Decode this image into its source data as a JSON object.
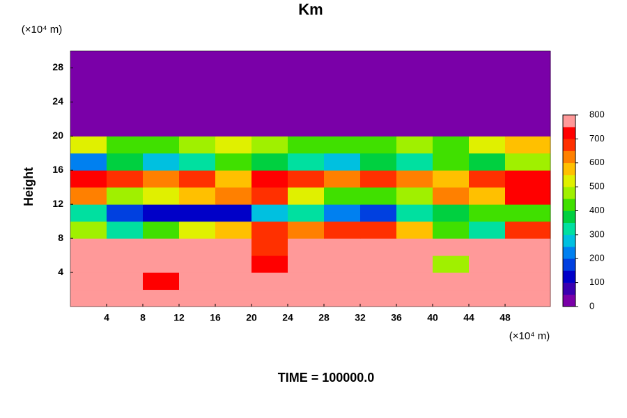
{
  "chart_data": {
    "type": "heatmap",
    "title": "Km",
    "ylabel": "Height",
    "x_unit_label": "(×10⁴ m)",
    "y_unit_label": "(×10⁴ m)",
    "footer": "TIME = 100000.0",
    "xlim": [
      0,
      53
    ],
    "ylim": [
      0,
      30
    ],
    "xticks": [
      4,
      8,
      12,
      16,
      20,
      24,
      28,
      32,
      36,
      40,
      44,
      48
    ],
    "yticks": [
      4,
      8,
      12,
      16,
      20,
      24,
      28
    ],
    "x": [
      2,
      6,
      10,
      14,
      18,
      22,
      26,
      30,
      34,
      38,
      42,
      46,
      50
    ],
    "y": [
      1,
      3,
      5,
      7,
      9,
      11,
      13,
      15,
      17,
      19,
      21,
      23,
      25,
      27,
      29
    ],
    "z": [
      [
        800,
        800,
        800,
        800,
        800,
        800,
        800,
        800,
        800,
        800,
        800,
        800,
        800
      ],
      [
        800,
        800,
        750,
        800,
        800,
        800,
        800,
        800,
        800,
        800,
        800,
        800,
        800
      ],
      [
        800,
        800,
        800,
        800,
        800,
        750,
        800,
        800,
        800,
        800,
        500,
        800,
        800
      ],
      [
        800,
        800,
        800,
        800,
        800,
        700,
        800,
        800,
        800,
        800,
        800,
        800,
        800
      ],
      [
        500,
        300,
        450,
        550,
        600,
        700,
        650,
        700,
        700,
        600,
        400,
        300,
        700
      ],
      [
        300,
        150,
        100,
        80,
        100,
        250,
        300,
        200,
        150,
        300,
        350,
        400,
        450
      ],
      [
        650,
        500,
        550,
        600,
        650,
        700,
        550,
        450,
        400,
        500,
        650,
        600,
        750
      ],
      [
        750,
        700,
        650,
        700,
        600,
        750,
        700,
        650,
        700,
        650,
        600,
        700,
        750
      ],
      [
        200,
        350,
        250,
        300,
        400,
        350,
        300,
        250,
        350,
        300,
        400,
        350,
        500
      ],
      [
        550,
        450,
        400,
        500,
        550,
        500,
        450,
        400,
        450,
        500,
        450,
        550,
        600
      ],
      [
        0,
        0,
        0,
        0,
        0,
        0,
        0,
        0,
        0,
        0,
        0,
        0,
        0
      ],
      [
        0,
        0,
        0,
        0,
        0,
        0,
        0,
        0,
        0,
        0,
        0,
        0,
        0
      ],
      [
        0,
        0,
        0,
        0,
        0,
        0,
        0,
        0,
        0,
        0,
        0,
        0,
        0
      ],
      [
        0,
        0,
        0,
        0,
        0,
        0,
        0,
        0,
        0,
        0,
        0,
        0,
        0
      ],
      [
        0,
        0,
        0,
        0,
        0,
        0,
        0,
        0,
        0,
        0,
        0,
        0,
        0
      ]
    ],
    "clim": [
      0,
      800
    ],
    "cticks": [
      0,
      100,
      200,
      300,
      400,
      500,
      600,
      700,
      800
    ],
    "colormap": [
      "#7a00a8",
      "#3a00b0",
      "#0000c8",
      "#0040e0",
      "#0080f0",
      "#00c0e0",
      "#00e0a0",
      "#00d040",
      "#40e000",
      "#a0f000",
      "#e0f000",
      "#ffc000",
      "#ff8000",
      "#ff3000",
      "#ff0000",
      "#ff9999"
    ]
  }
}
